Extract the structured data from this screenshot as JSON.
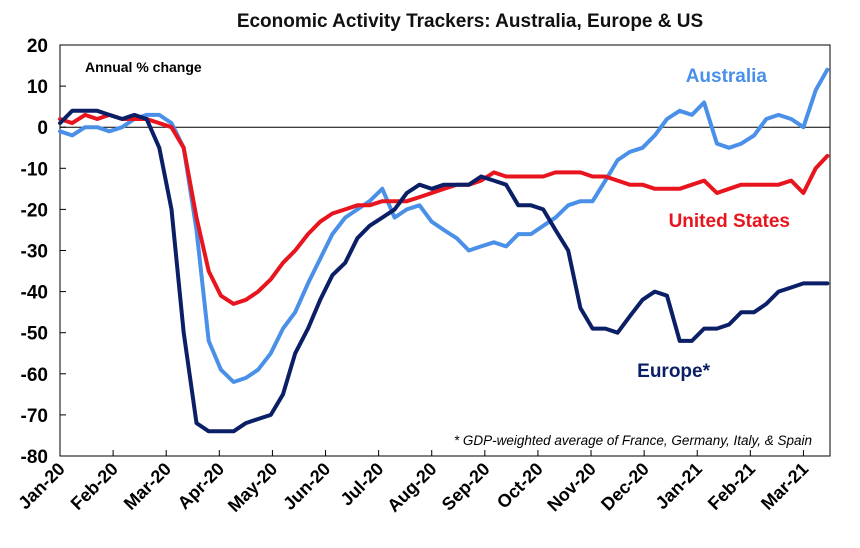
{
  "chart_data": {
    "type": "line",
    "title": "Economic Activity Trackers: Australia, Europe & US",
    "ylabel": "Annual % change",
    "xlabel": "",
    "ylim": [
      -80,
      20
    ],
    "yticks": [
      20,
      10,
      0,
      -10,
      -20,
      -30,
      -40,
      -50,
      -60,
      -70,
      -80
    ],
    "xlim": [
      0,
      14.5
    ],
    "x_tick_labels": [
      "Jan-20",
      "Feb-20",
      "Mar-20",
      "Apr-20",
      "May-20",
      "Jun-20",
      "Jul-20",
      "Aug-20",
      "Sep-20",
      "Oct-20",
      "Nov-20",
      "Dec-20",
      "Jan-21",
      "Feb-21",
      "Mar-21"
    ],
    "grid": false,
    "zero_line": true,
    "footnote": "* GDP-weighted average of France, Germany, Italy, & Spain",
    "series": [
      {
        "name": "Australia",
        "label": "Australia",
        "color": "#4a90e8",
        "x": [
          0.0,
          0.23,
          0.47,
          0.7,
          0.93,
          1.17,
          1.4,
          1.63,
          1.87,
          2.1,
          2.33,
          2.57,
          2.8,
          3.03,
          3.27,
          3.5,
          3.73,
          3.97,
          4.2,
          4.43,
          4.67,
          4.9,
          5.13,
          5.37,
          5.6,
          5.83,
          6.07,
          6.3,
          6.53,
          6.77,
          7.0,
          7.23,
          7.47,
          7.7,
          7.93,
          8.17,
          8.4,
          8.63,
          8.87,
          9.1,
          9.33,
          9.57,
          9.8,
          10.03,
          10.27,
          10.5,
          10.73,
          10.97,
          11.2,
          11.43,
          11.67,
          11.9,
          12.13,
          12.37,
          12.6,
          12.83,
          13.07,
          13.3,
          13.53,
          13.77,
          14.0,
          14.23,
          14.45
        ],
        "values": [
          -1,
          -2,
          0,
          0,
          -1,
          0,
          2,
          3,
          3,
          1,
          -5,
          -25,
          -52,
          -59,
          -62,
          -61,
          -59,
          -55,
          -49,
          -45,
          -38,
          -32,
          -26,
          -22,
          -20,
          -18,
          -15,
          -22,
          -20,
          -19,
          -23,
          -25,
          -27,
          -30,
          -29,
          -28,
          -29,
          -26,
          -26,
          -24,
          -22,
          -19,
          -18,
          -18,
          -13,
          -8,
          -6,
          -5,
          -2,
          2,
          4,
          3,
          6,
          -4,
          -5,
          -4,
          -2,
          2,
          3,
          2,
          0,
          9,
          14
        ]
      },
      {
        "name": "United States",
        "label": "United States",
        "color": "#e8141e",
        "x": [
          0.0,
          0.23,
          0.47,
          0.7,
          0.93,
          1.17,
          1.4,
          1.63,
          1.87,
          2.1,
          2.33,
          2.57,
          2.8,
          3.03,
          3.27,
          3.5,
          3.73,
          3.97,
          4.2,
          4.43,
          4.67,
          4.9,
          5.13,
          5.37,
          5.6,
          5.83,
          6.07,
          6.3,
          6.53,
          6.77,
          7.0,
          7.23,
          7.47,
          7.7,
          7.93,
          8.17,
          8.4,
          8.63,
          8.87,
          9.1,
          9.33,
          9.57,
          9.8,
          10.03,
          10.27,
          10.5,
          10.73,
          10.97,
          11.2,
          11.43,
          11.67,
          11.9,
          12.13,
          12.37,
          12.6,
          12.83,
          13.07,
          13.3,
          13.53,
          13.77,
          14.0,
          14.23,
          14.45
        ],
        "values": [
          2,
          1,
          3,
          2,
          3,
          2,
          2,
          2,
          1,
          0,
          -5,
          -22,
          -35,
          -41,
          -43,
          -42,
          -40,
          -37,
          -33,
          -30,
          -26,
          -23,
          -21,
          -20,
          -19,
          -19,
          -18,
          -18,
          -18,
          -17,
          -16,
          -15,
          -14,
          -14,
          -13,
          -11,
          -12,
          -12,
          -12,
          -12,
          -11,
          -11,
          -11,
          -12,
          -12,
          -13,
          -14,
          -14,
          -15,
          -15,
          -15,
          -14,
          -13,
          -16,
          -15,
          -14,
          -14,
          -14,
          -14,
          -13,
          -16,
          -10,
          -7
        ]
      },
      {
        "name": "Europe*",
        "label": "Europe*",
        "color": "#0b1f66",
        "x": [
          0.0,
          0.23,
          0.47,
          0.7,
          0.93,
          1.17,
          1.4,
          1.63,
          1.87,
          2.1,
          2.33,
          2.57,
          2.8,
          3.03,
          3.27,
          3.5,
          3.73,
          3.97,
          4.2,
          4.43,
          4.67,
          4.9,
          5.13,
          5.37,
          5.6,
          5.83,
          6.07,
          6.3,
          6.53,
          6.77,
          7.0,
          7.23,
          7.47,
          7.7,
          7.93,
          8.17,
          8.4,
          8.63,
          8.87,
          9.1,
          9.33,
          9.57,
          9.8,
          10.03,
          10.27,
          10.5,
          10.73,
          10.97,
          11.2,
          11.43,
          11.67,
          11.9,
          12.13,
          12.37,
          12.6,
          12.83,
          13.07,
          13.3,
          13.53,
          13.77,
          14.0,
          14.23,
          14.45
        ],
        "values": [
          1,
          4,
          4,
          4,
          3,
          2,
          3,
          2,
          -5,
          -20,
          -50,
          -72,
          -74,
          -74,
          -74,
          -72,
          -71,
          -70,
          -65,
          -55,
          -49,
          -42,
          -36,
          -33,
          -27,
          -24,
          -22,
          -20,
          -16,
          -14,
          -15,
          -14,
          -14,
          -14,
          -12,
          -13,
          -14,
          -19,
          -19,
          -20,
          -25,
          -30,
          -44,
          -49,
          -49,
          -50,
          -46,
          -42,
          -40,
          -41,
          -52,
          -52,
          -49,
          -49,
          -48,
          -45,
          -45,
          -43,
          -40,
          -39,
          -38,
          -38,
          -38
        ]
      }
    ]
  }
}
